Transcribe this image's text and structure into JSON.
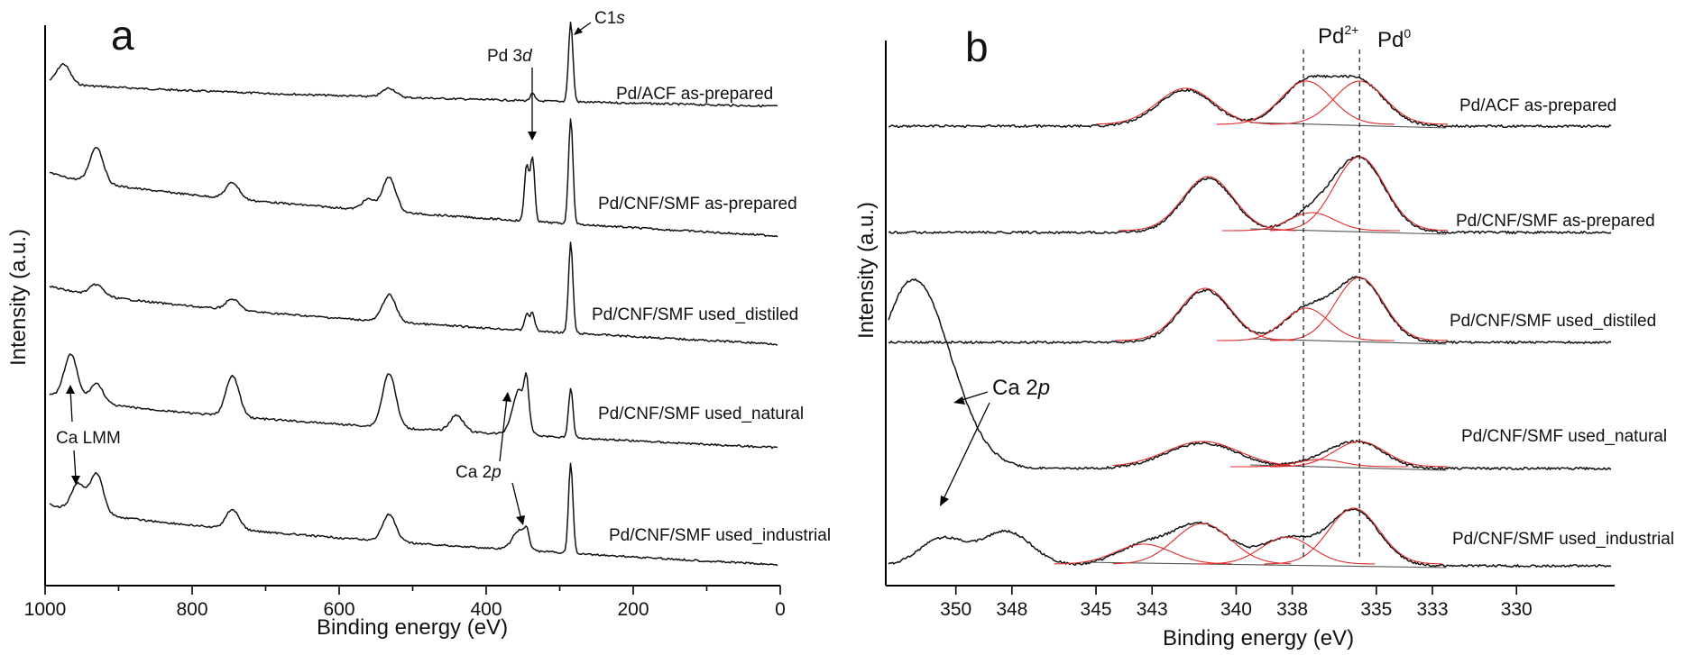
{
  "chart_data": [
    {
      "type": "line",
      "panel": "a",
      "xlabel": "Binding energy (eV)",
      "ylabel": "Intensity (a.u.)",
      "xlim": [
        1000,
        0
      ],
      "x_reversed": true,
      "x_ticks": [
        1000,
        800,
        600,
        400,
        200,
        0
      ],
      "series": [
        {
          "name": "Pd/ACF as-prepared",
          "peaks_eV": [
            975,
            532,
            335,
            285
          ]
        },
        {
          "name": "Pd/CNF/SMF as-prepared",
          "peaks_eV": [
            930,
            745,
            560,
            532,
            340,
            335,
            285
          ]
        },
        {
          "name": "Pd/CNF/SMF used_distiled",
          "peaks_eV": [
            930,
            745,
            532,
            340,
            285
          ]
        },
        {
          "name": "Pd/CNF/SMF used_natural",
          "peaks_eV": [
            965,
            930,
            745,
            532,
            440,
            350,
            340,
            285
          ]
        },
        {
          "name": "Pd/CNF/SMF used_industrial",
          "peaks_eV": [
            955,
            930,
            745,
            532,
            350,
            340,
            285
          ]
        }
      ],
      "annotations": [
        {
          "text": "C1",
          "italic": "s",
          "x": 285
        },
        {
          "text": "Pd 3",
          "italic": "d",
          "x": 337
        },
        {
          "text": "Ca LMM",
          "x": 965
        },
        {
          "text": "Ca 2",
          "italic": "p",
          "x": 350
        }
      ]
    },
    {
      "type": "line",
      "panel": "b",
      "xlabel": "Binding energy (eV)",
      "ylabel": "Intensity (a.u.)",
      "xlim": [
        352.5,
        326.5
      ],
      "x_reversed": true,
      "x_ticks": [
        350,
        348,
        345,
        343,
        340,
        338,
        335,
        333,
        330
      ],
      "reference_lines": [
        {
          "label": "Pd",
          "sup": "2+",
          "x": 337.6
        },
        {
          "label": "Pd",
          "sup": "0",
          "x": 335.6
        }
      ],
      "series": [
        {
          "name": "Pd/ACF as-prepared",
          "peaks_eV": [
            341.8,
            337.5,
            335.6
          ]
        },
        {
          "name": "Pd/CNF/SMF as-prepared",
          "peaks_eV": [
            341.0,
            337.3,
            335.6
          ]
        },
        {
          "name": "Pd/CNF/SMF used_distiled",
          "peaks_eV": [
            341.1,
            337.5,
            335.6
          ]
        },
        {
          "name": "Pd/CNF/SMF used_natural",
          "peaks_eV": [
            351.5,
            341.2,
            337.0,
            335.6
          ]
        },
        {
          "name": "Pd/CNF/SMF used_industrial",
          "peaks_eV": [
            350.5,
            348.2,
            343.3,
            341.2,
            338.2,
            335.8
          ]
        }
      ],
      "annotations": [
        {
          "text": "Ca 2",
          "italic": "p",
          "x": 351
        }
      ]
    }
  ]
}
